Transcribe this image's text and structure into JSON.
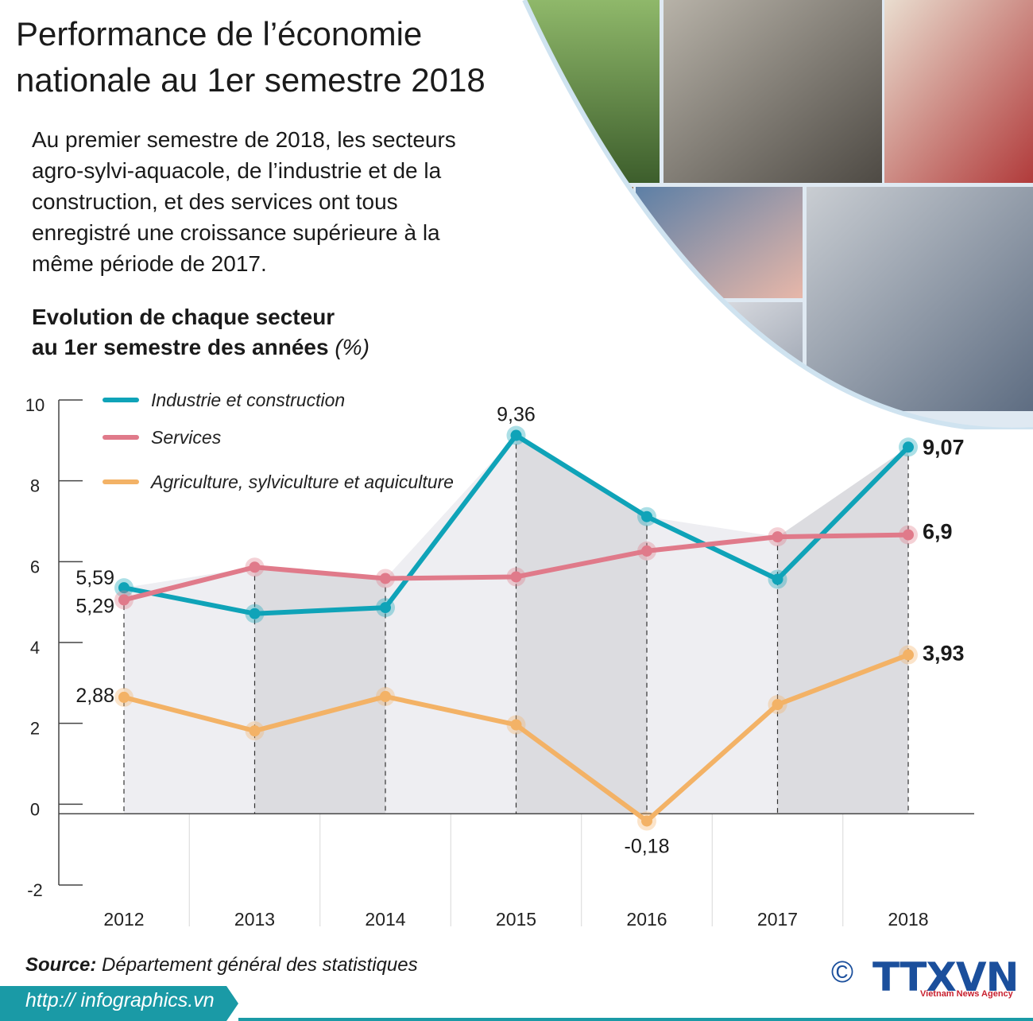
{
  "header": {
    "title_line1": "Performance de l’économie",
    "title_line2": "nationale au 1er semestre 2018",
    "intro": "Au premier semestre de 2018, les secteurs agro-sylvi-aquacole, de l’industrie et de la construction, et des services ont tous enregistré une croissance supérieure à la même période de 2017."
  },
  "chart_title": {
    "line1": "Evolution de chaque secteur",
    "line2": "au 1er semestre des années",
    "unit": "(%)"
  },
  "colors": {
    "industrie": "#0fa3b8",
    "services": "#e07a8a",
    "agriculture": "#f3b266",
    "band_dark": "#dcdce0",
    "band_light": "#eeeef2",
    "footer": "#1a9aa6"
  },
  "chart_data": {
    "type": "line",
    "x": [
      "2012",
      "2013",
      "2014",
      "2015",
      "2016",
      "2017",
      "2018"
    ],
    "ylim": [
      -2,
      10
    ],
    "yticks": [
      "10",
      "8",
      "6",
      "4",
      "2",
      "0",
      "-2"
    ],
    "legend_position": "top-left",
    "series": [
      {
        "name": "Industrie et construction",
        "key": "industrie",
        "values": [
          5.59,
          4.95,
          5.1,
          9.36,
          7.35,
          5.8,
          9.07
        ]
      },
      {
        "name": "Services",
        "key": "services",
        "values": [
          5.29,
          6.1,
          5.82,
          5.86,
          6.5,
          6.85,
          6.9
        ]
      },
      {
        "name": "Agriculture, sylviculture et aquiculture",
        "key": "agriculture",
        "values": [
          2.88,
          2.05,
          2.9,
          2.2,
          -0.18,
          2.7,
          3.93
        ]
      }
    ],
    "data_labels": [
      "5,59",
      "5,29",
      "2,88",
      "9,36",
      "-0,18",
      "9,07",
      "6,9",
      "3,93"
    ]
  },
  "footer": {
    "source_label": "Source:",
    "source_text": " Département général des statistiques",
    "url": "http:// infographics.vn",
    "copyright": "©",
    "brand": "TTXVN",
    "brand_tagline": "Vietnam News Agency"
  }
}
